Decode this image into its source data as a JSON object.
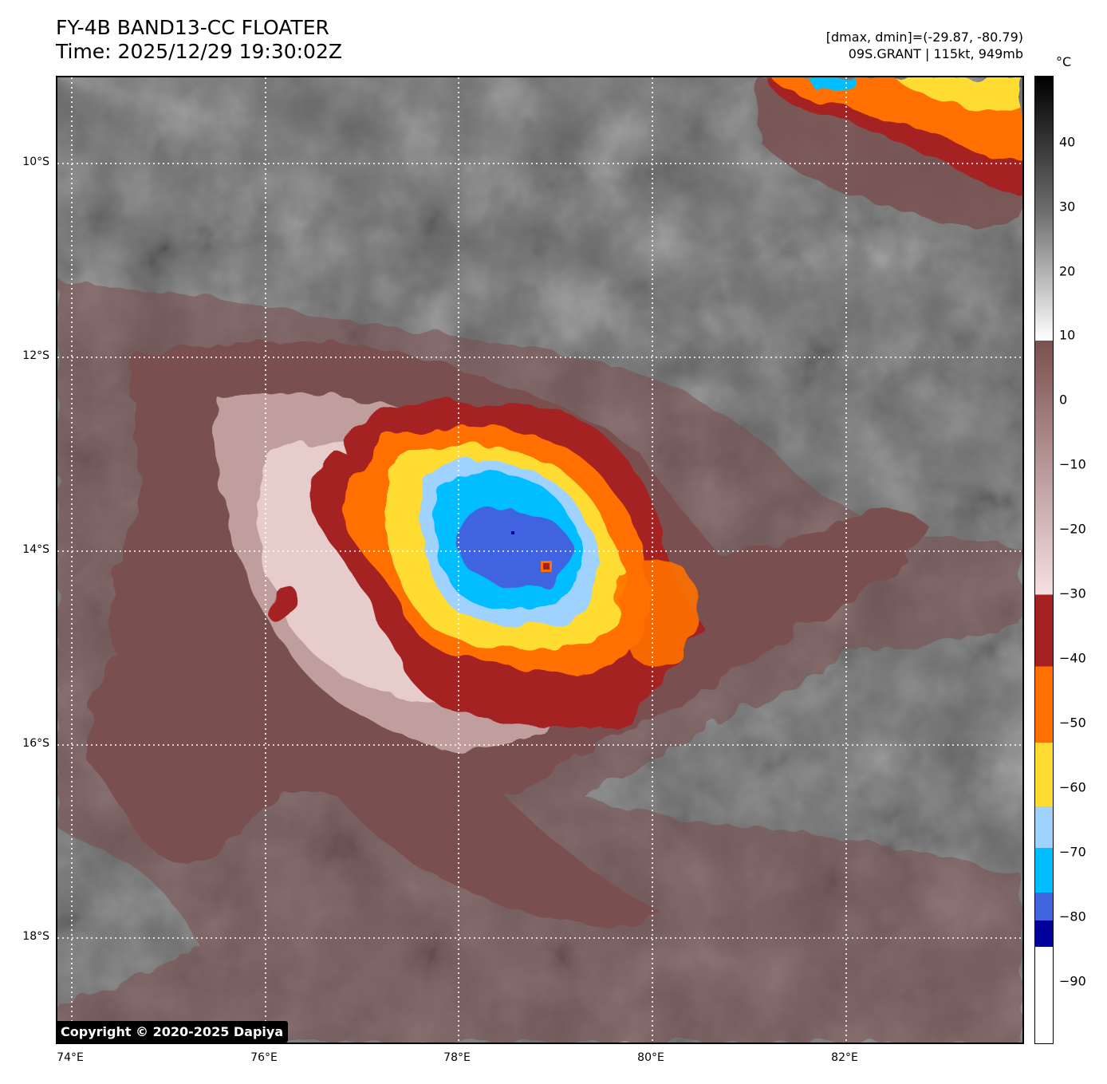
{
  "header": {
    "title_line1": "FY-4B BAND13-CC FLOATER",
    "title_line2": "Time: 2025/12/29 19:30:02Z",
    "range_text": "[dmax, dmin]=(-29.87, -80.79)",
    "storm_text": "09S.GRANT | 115kt, 949mb"
  },
  "colorbar": {
    "unit": "°C",
    "tick_labels": [
      "40",
      "30",
      "20",
      "10",
      "0",
      "−10",
      "−20",
      "−30",
      "−40",
      "−50",
      "−60",
      "−70",
      "−80",
      "−90"
    ],
    "colors": {
      "warm_top": "#000000",
      "gray_mid": "#6e6e6e",
      "gray_light": "#ffffff",
      "brown": "#7a5050",
      "pink": "#f6e0e0",
      "dark_red": "#a52020",
      "orange": "#ff7000",
      "yellow": "#ffdc32",
      "light_blue": "#a0d2ff",
      "cyan": "#00beff",
      "royal_blue": "#4164e1",
      "navy": "#00009b",
      "white": "#ffffff"
    }
  },
  "map": {
    "lat_labels": [
      "10°S",
      "12°S",
      "14°S",
      "16°S",
      "18°S"
    ],
    "lon_labels": [
      "74°E",
      "76°E",
      "78°E",
      "80°E",
      "82°E"
    ]
  },
  "copyright": "Copyright © 2020-2025 Dapiya"
}
